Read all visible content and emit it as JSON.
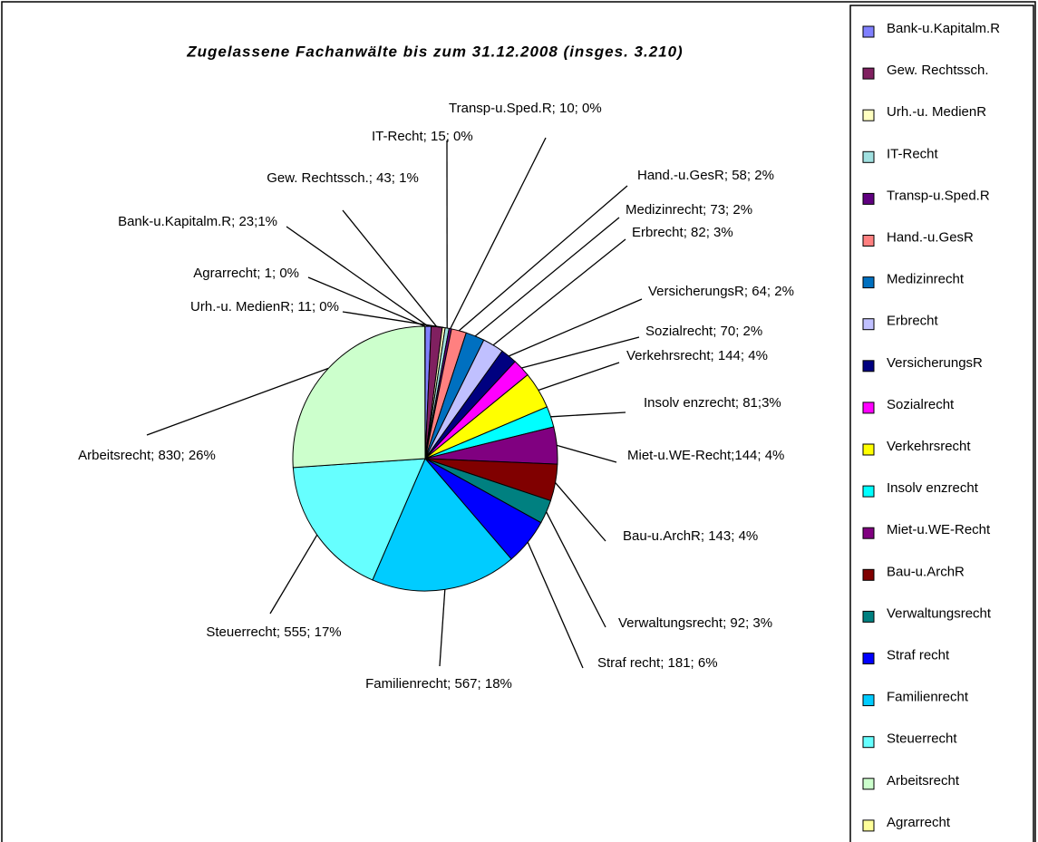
{
  "chart_data": {
    "type": "pie",
    "title": "Zugelassene Fachanwälte bis zum 31.12.2008 (insges. 3.210)",
    "categories": [
      "Bank-u.Kapitalm.R",
      "Gew. Rechtssch.",
      "Urh.-u. MedienR",
      "IT-Recht",
      "Transp-u.Sped.R",
      "Hand.-u.GesR",
      "Medizinrecht",
      "Erbrecht",
      "VersicherungsR",
      "Sozialrecht",
      "Verkehrsrecht",
      "Insolv enzrecht",
      "Miet-u.WE-Recht",
      "Bau-u.ArchR",
      "Verwaltungsrecht",
      "Straf recht",
      "Familienrecht",
      "Steuerrecht",
      "Arbeitsrecht",
      "Agrarrecht"
    ],
    "values": [
      23,
      43,
      11,
      15,
      10,
      58,
      73,
      82,
      64,
      70,
      144,
      81,
      144,
      143,
      92,
      181,
      567,
      555,
      830,
      1
    ],
    "value_labels": [
      "Bank-u.Kapitalm.R; 23;1%",
      "Gew. Rechtssch.; 43; 1%",
      "Urh.-u. MedienR; 11; 0%",
      "IT-Recht; 15; 0%",
      "Transp-u.Sped.R; 10; 0%",
      "Hand.-u.GesR; 58; 2%",
      "Medizinrecht; 73; 2%",
      "Erbrecht; 82; 3%",
      "VersicherungsR; 64; 2%",
      "Sozialrecht; 70; 2%",
      "Verkehrsrecht; 144; 4%",
      "Insolv enzrecht; 81;3%",
      "Miet-u.WE-Recht;144; 4%",
      "Bau-u.ArchR; 143; 4%",
      "Verwaltungsrecht; 92; 3%",
      "Straf recht; 181; 6%",
      "Familienrecht; 567; 18%",
      "Steuerrecht; 555; 17%",
      "Arbeitsrecht; 830; 26%",
      "Agrarrecht; 1; 0%"
    ],
    "colors": [
      "#8080ff",
      "#802060",
      "#ffffc0",
      "#a0e0e0",
      "#600080",
      "#ff8080",
      "#0070c0",
      "#c0c0ff",
      "#000080",
      "#ff00ff",
      "#ffff00",
      "#00ffff",
      "#800080",
      "#800000",
      "#008080",
      "#0000ff",
      "#00ccff",
      "#66ffff",
      "#ccffcc",
      "#ffff99"
    ],
    "legend": "right"
  }
}
